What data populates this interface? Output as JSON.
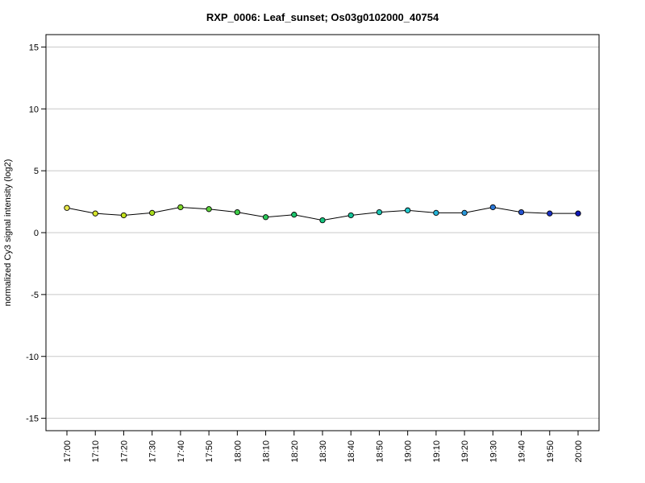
{
  "chart_data": {
    "type": "line",
    "title": "RXP_0006: Leaf_sunset; Os03g0102000_40754",
    "xlabel": "",
    "ylabel": "normalized Cy3 signal intensity (log2)",
    "ylim": [
      -16,
      16
    ],
    "yticks": [
      -15,
      -10,
      -5,
      0,
      5,
      10,
      15
    ],
    "ytick_labels": [
      "-15",
      "-10",
      "-5",
      "0",
      "5",
      "10",
      "15"
    ],
    "grid": "horizontal",
    "categories": [
      "17:00",
      "17:10",
      "17:20",
      "17:30",
      "17:40",
      "17:50",
      "18:00",
      "18:10",
      "18:20",
      "18:30",
      "18:40",
      "18:50",
      "19:00",
      "19:10",
      "19:20",
      "19:30",
      "19:40",
      "19:50",
      "20:00"
    ],
    "values": [
      2.0,
      1.55,
      1.4,
      1.6,
      2.05,
      1.9,
      1.65,
      1.25,
      1.45,
      1.0,
      1.4,
      1.65,
      1.8,
      1.6,
      1.6,
      2.05,
      1.65,
      1.55,
      1.55
    ],
    "point_colors": [
      "#e8e84a",
      "#d8e62c",
      "#c2e01c",
      "#a8dc1c",
      "#7ed62a",
      "#5cd23a",
      "#3ecc48",
      "#2cc85a",
      "#1cc66c",
      "#14c47e",
      "#16c498",
      "#1cc6b4",
      "#22c8cc",
      "#24b4d8",
      "#2a98da",
      "#2c78d8",
      "#2452d0",
      "#1a30c4",
      "#1018b8"
    ],
    "line_color": "#000000"
  }
}
